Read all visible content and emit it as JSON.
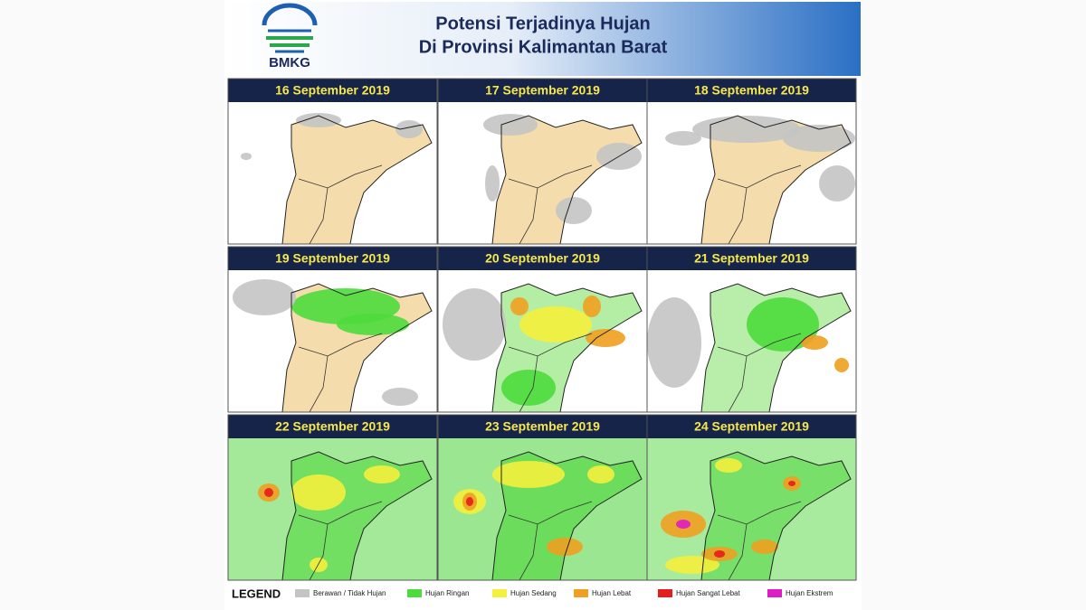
{
  "header": {
    "logo_text": "BMKG",
    "title_lines": [
      "Potensi Terjadinya Hujan",
      "Di Provinsi Kalimantan Barat"
    ]
  },
  "panels": [
    {
      "date": "16  September  2019"
    },
    {
      "date": "17 September  2019"
    },
    {
      "date": "18 September  2019"
    },
    {
      "date": "19 September 2019"
    },
    {
      "date": "20 September 2019"
    },
    {
      "date": "21 September 2019"
    },
    {
      "date": "22 September 2019"
    },
    {
      "date": "23 September 2019"
    },
    {
      "date": "24 September 2019"
    }
  ],
  "legend": {
    "title": "LEGEND",
    "items": [
      {
        "label": "Berawan / Tidak Hujan",
        "color": "#c4c4c4"
      },
      {
        "label": "Hujan Ringan",
        "color": "#4cdc3c"
      },
      {
        "label": "Hujan Sedang",
        "color": "#f4f03c"
      },
      {
        "label": "Hujan Lebat",
        "color": "#f0a020"
      },
      {
        "label": "Hujan Sangat Lebat",
        "color": "#e41c1c"
      },
      {
        "label": "Hujan Ekstrem",
        "color": "#e01cc8"
      }
    ]
  }
}
